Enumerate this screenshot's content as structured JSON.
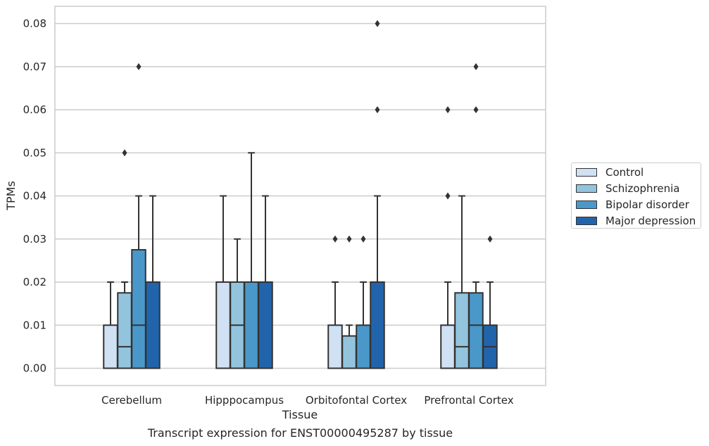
{
  "caption": "Transcript expression for ENST00000495287 by tissue",
  "colors": {
    "Control": "#cfe1f2",
    "Schizophrenia": "#93c4de",
    "Bipolar disorder": "#4a98c9",
    "Major depression": "#2164ab",
    "edge": "#333333",
    "grid": "#cccccc"
  },
  "chart_data": {
    "type": "box",
    "xlabel": "Tissue",
    "ylabel": "TPMs",
    "ylim": [
      -0.004,
      0.084
    ],
    "yticks": [
      "0.00",
      "0.01",
      "0.02",
      "0.03",
      "0.04",
      "0.05",
      "0.06",
      "0.07",
      "0.08"
    ],
    "categories": [
      "Cerebellum",
      "Hipppocampus",
      "Orbitofontal Cortex",
      "Prefrontal Cortex"
    ],
    "legend": {
      "position": "right",
      "entries": [
        "Control",
        "Schizophrenia",
        "Bipolar disorder",
        "Major depression"
      ]
    },
    "grid": true,
    "series": [
      {
        "name": "Control",
        "boxes": [
          {
            "q1": 0,
            "median": 0,
            "q3": 0.01,
            "whislo": 0,
            "whishi": 0.02,
            "fliers": []
          },
          {
            "q1": 0,
            "median": 0,
            "q3": 0.02,
            "whislo": 0,
            "whishi": 0.04,
            "fliers": []
          },
          {
            "q1": 0,
            "median": 0,
            "q3": 0.01,
            "whislo": 0,
            "whishi": 0.02,
            "fliers": [
              0.03
            ]
          },
          {
            "q1": 0,
            "median": 0,
            "q3": 0.01,
            "whislo": 0,
            "whishi": 0.02,
            "fliers": [
              0.04,
              0.06
            ]
          }
        ]
      },
      {
        "name": "Schizophrenia",
        "boxes": [
          {
            "q1": 0,
            "median": 0.005,
            "q3": 0.0175,
            "whislo": 0,
            "whishi": 0.02,
            "fliers": [
              0.05
            ]
          },
          {
            "q1": 0,
            "median": 0.01,
            "q3": 0.02,
            "whislo": 0,
            "whishi": 0.03,
            "fliers": []
          },
          {
            "q1": 0,
            "median": 0,
            "q3": 0.0075,
            "whislo": 0,
            "whishi": 0.01,
            "fliers": [
              0.03
            ]
          },
          {
            "q1": 0,
            "median": 0.005,
            "q3": 0.0175,
            "whislo": 0,
            "whishi": 0.04,
            "fliers": []
          }
        ]
      },
      {
        "name": "Bipolar disorder",
        "boxes": [
          {
            "q1": 0,
            "median": 0.01,
            "q3": 0.0275,
            "whislo": 0,
            "whishi": 0.04,
            "fliers": [
              0.07
            ]
          },
          {
            "q1": 0,
            "median": 0,
            "q3": 0.02,
            "whislo": 0,
            "whishi": 0.05,
            "fliers": []
          },
          {
            "q1": 0,
            "median": 0,
            "q3": 0.01,
            "whislo": 0,
            "whishi": 0.02,
            "fliers": [
              0.03
            ]
          },
          {
            "q1": 0,
            "median": 0.01,
            "q3": 0.0175,
            "whislo": 0,
            "whishi": 0.02,
            "fliers": [
              0.06,
              0.07
            ]
          }
        ]
      },
      {
        "name": "Major depression",
        "boxes": [
          {
            "q1": 0,
            "median": 0,
            "q3": 0.02,
            "whislo": 0,
            "whishi": 0.04,
            "fliers": []
          },
          {
            "q1": 0,
            "median": 0,
            "q3": 0.02,
            "whislo": 0,
            "whishi": 0.04,
            "fliers": []
          },
          {
            "q1": 0,
            "median": 0,
            "q3": 0.02,
            "whislo": 0,
            "whishi": 0.04,
            "fliers": [
              0.06,
              0.08
            ]
          },
          {
            "q1": 0,
            "median": 0.005,
            "q3": 0.01,
            "whislo": 0,
            "whishi": 0.02,
            "fliers": [
              0.03
            ]
          }
        ]
      }
    ]
  }
}
